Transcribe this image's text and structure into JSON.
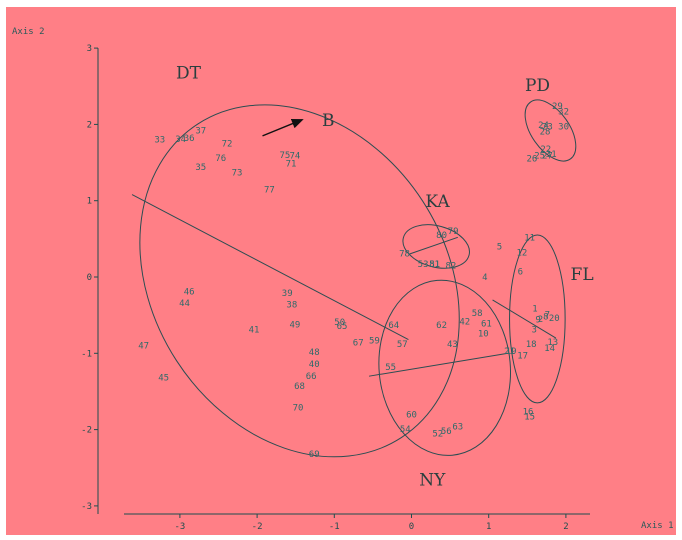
{
  "chart_data": {
    "type": "scatter",
    "xlabel": "Axis 1",
    "ylabel": "Axis 2",
    "xlim": [
      -3.7,
      2.3
    ],
    "ylim": [
      -3.0,
      3.0
    ],
    "x_ticks": [
      -3,
      -2,
      -1,
      0,
      1,
      2
    ],
    "y_ticks": [
      -3,
      -2,
      -1,
      0,
      1,
      2,
      3
    ],
    "grid": false,
    "colors": {
      "background": "#ff7f86",
      "points": "#2f6a6a",
      "lines": "#2c4d52",
      "text": "#2a3f3f"
    },
    "points": [
      {
        "label": "1",
        "x": 1.6,
        "y": -0.41
      },
      {
        "label": "2",
        "x": 1.67,
        "y": -0.55
      },
      {
        "label": "3",
        "x": 1.59,
        "y": -0.69
      },
      {
        "label": "4",
        "x": 0.95,
        "y": 0.0
      },
      {
        "label": "5",
        "x": 1.14,
        "y": 0.4
      },
      {
        "label": "6",
        "x": 1.41,
        "y": 0.07
      },
      {
        "label": "7",
        "x": 1.76,
        "y": -0.49
      },
      {
        "label": "8",
        "x": 1.74,
        "y": -0.52
      },
      {
        "label": "9",
        "x": 1.64,
        "y": -0.56
      },
      {
        "label": "10",
        "x": 0.93,
        "y": -0.74
      },
      {
        "label": "11",
        "x": 1.53,
        "y": 0.52
      },
      {
        "label": "12",
        "x": 1.43,
        "y": 0.32
      },
      {
        "label": "13",
        "x": 1.83,
        "y": -0.85
      },
      {
        "label": "14",
        "x": 1.79,
        "y": -0.93
      },
      {
        "label": "15",
        "x": 1.53,
        "y": -1.83
      },
      {
        "label": "16",
        "x": 1.51,
        "y": -1.76
      },
      {
        "label": "17",
        "x": 1.44,
        "y": -1.03
      },
      {
        "label": "18",
        "x": 1.55,
        "y": -0.88
      },
      {
        "label": "19",
        "x": 1.29,
        "y": -0.97
      },
      {
        "label": "20",
        "x": 1.85,
        "y": -0.54
      },
      {
        "label": "21",
        "x": 1.27,
        "y": -0.97
      },
      {
        "label": "22",
        "x": 1.74,
        "y": 1.68
      },
      {
        "label": "23",
        "x": 1.76,
        "y": 1.97
      },
      {
        "label": "24",
        "x": 1.71,
        "y": 1.99
      },
      {
        "label": "25",
        "x": 1.66,
        "y": 1.59
      },
      {
        "label": "26",
        "x": 1.56,
        "y": 1.55
      },
      {
        "label": "27",
        "x": 1.76,
        "y": 1.59
      },
      {
        "label": "28",
        "x": 1.73,
        "y": 1.91
      },
      {
        "label": "29",
        "x": 1.89,
        "y": 2.24
      },
      {
        "label": "30",
        "x": 1.97,
        "y": 1.97
      },
      {
        "label": "31",
        "x": 1.81,
        "y": 1.61
      },
      {
        "label": "32",
        "x": 1.97,
        "y": 2.17
      },
      {
        "label": "33",
        "x": -3.26,
        "y": 1.8
      },
      {
        "label": "34",
        "x": -2.99,
        "y": 1.81
      },
      {
        "label": "35",
        "x": -2.73,
        "y": 1.44
      },
      {
        "label": "36",
        "x": -2.88,
        "y": 1.82
      },
      {
        "label": "37",
        "x": -2.73,
        "y": 1.92
      },
      {
        "label": "38",
        "x": -1.55,
        "y": -0.36
      },
      {
        "label": "39",
        "x": -1.61,
        "y": -0.21
      },
      {
        "label": "40",
        "x": -1.26,
        "y": -1.14
      },
      {
        "label": "41",
        "x": -2.04,
        "y": -0.69
      },
      {
        "label": "42",
        "x": 0.69,
        "y": -0.58
      },
      {
        "label": "43",
        "x": 0.53,
        "y": -0.88
      },
      {
        "label": "44",
        "x": -2.94,
        "y": -0.34
      },
      {
        "label": "45",
        "x": -3.21,
        "y": -1.32
      },
      {
        "label": "46",
        "x": -2.88,
        "y": -0.19
      },
      {
        "label": "47",
        "x": -3.47,
        "y": -0.9
      },
      {
        "label": "48",
        "x": -1.26,
        "y": -0.98
      },
      {
        "label": "49",
        "x": -1.51,
        "y": -0.62
      },
      {
        "label": "50",
        "x": -0.93,
        "y": -0.59
      },
      {
        "label": "51",
        "x": 0.3,
        "y": 0.17
      },
      {
        "label": "52",
        "x": 0.34,
        "y": -2.05
      },
      {
        "label": "53",
        "x": 0.15,
        "y": 0.17
      },
      {
        "label": "54",
        "x": -0.08,
        "y": -1.99
      },
      {
        "label": "55",
        "x": -0.27,
        "y": -1.18
      },
      {
        "label": "56",
        "x": 0.45,
        "y": -2.02
      },
      {
        "label": "57",
        "x": -0.12,
        "y": -0.88
      },
      {
        "label": "58",
        "x": 0.85,
        "y": -0.47
      },
      {
        "label": "59",
        "x": -0.48,
        "y": -0.83
      },
      {
        "label": "60",
        "x": 0.0,
        "y": -1.8
      },
      {
        "label": "61",
        "x": 0.97,
        "y": -0.61
      },
      {
        "label": "62",
        "x": 0.39,
        "y": -0.63
      },
      {
        "label": "63",
        "x": 0.6,
        "y": -1.96
      },
      {
        "label": "64",
        "x": -0.23,
        "y": -0.63
      },
      {
        "label": "65",
        "x": -0.9,
        "y": -0.64
      },
      {
        "label": "66",
        "x": -1.3,
        "y": -1.3
      },
      {
        "label": "67",
        "x": -0.69,
        "y": -0.86
      },
      {
        "label": "68",
        "x": -1.45,
        "y": -1.43
      },
      {
        "label": "69",
        "x": -1.26,
        "y": -2.32
      },
      {
        "label": "70",
        "x": -1.47,
        "y": -1.71
      },
      {
        "label": "71",
        "x": -1.56,
        "y": 1.49
      },
      {
        "label": "72",
        "x": -2.39,
        "y": 1.75
      },
      {
        "label": "73",
        "x": -2.26,
        "y": 1.37
      },
      {
        "label": "74",
        "x": -1.51,
        "y": 1.59
      },
      {
        "label": "75",
        "x": -1.64,
        "y": 1.6
      },
      {
        "label": "76",
        "x": -2.47,
        "y": 1.56
      },
      {
        "label": "77",
        "x": -1.84,
        "y": 1.15
      },
      {
        "label": "78",
        "x": -0.09,
        "y": 0.31
      },
      {
        "label": "79",
        "x": 0.54,
        "y": 0.6
      },
      {
        "label": "80",
        "x": 0.39,
        "y": 0.55
      },
      {
        "label": "81",
        "x": 0.3,
        "y": 0.17
      },
      {
        "label": "82",
        "x": 0.51,
        "y": 0.15
      }
    ],
    "groups": [
      {
        "label": "DT",
        "ellipse": {
          "cx": -1.45,
          "cy": -0.05,
          "rx": 1.9,
          "ry": 2.45,
          "angle": -33
        },
        "label_pos": {
          "x": -3.05,
          "y": 2.6
        }
      },
      {
        "label": "KA",
        "ellipse": {
          "cx": 0.32,
          "cy": 0.4,
          "rx": 0.44,
          "ry": 0.27,
          "angle": 15
        },
        "label_pos": {
          "x": 0.18,
          "y": 0.92
        }
      },
      {
        "label": "PD",
        "ellipse": {
          "cx": 1.8,
          "cy": 1.92,
          "rx": 0.45,
          "ry": 0.25,
          "angle": 55
        },
        "label_pos": {
          "x": 1.47,
          "y": 2.44
        }
      },
      {
        "label": "FL",
        "ellipse": {
          "cx": 1.63,
          "cy": -0.55,
          "rx": 0.36,
          "ry": 1.1,
          "angle": 0
        },
        "label_pos": {
          "x": 2.06,
          "y": -0.04
        }
      },
      {
        "label": "NY",
        "ellipse": {
          "cx": 0.43,
          "cy": -1.19,
          "rx": 0.85,
          "ry": 1.15,
          "angle": -5
        },
        "label_pos": {
          "x": 0.1,
          "y": -2.73
        }
      }
    ],
    "lines": [
      {
        "x1": -3.62,
        "y1": 1.08,
        "x2": -0.04,
        "y2": -0.82
      },
      {
        "x1": 1.05,
        "y1": -0.3,
        "x2": 1.87,
        "y2": -0.8
      },
      {
        "x1": -0.55,
        "y1": -1.3,
        "x2": 1.25,
        "y2": -1.0
      },
      {
        "x1": -0.03,
        "y1": 0.3,
        "x2": 0.6,
        "y2": 0.52
      }
    ],
    "annotation": {
      "text": "B",
      "arrow": {
        "x1": -1.93,
        "y1": 1.85,
        "x2": -1.42,
        "y2": 2.06
      },
      "text_pos": {
        "x": -1.16,
        "y": 2.06
      }
    }
  }
}
